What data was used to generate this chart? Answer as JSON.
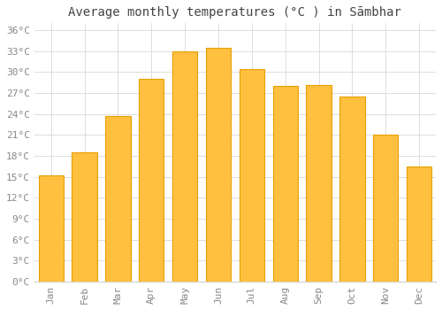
{
  "title": "Average monthly temperatures (°C ) in Sāmbhar",
  "months": [
    "Jan",
    "Feb",
    "Mar",
    "Apr",
    "May",
    "Jun",
    "Jul",
    "Aug",
    "Sep",
    "Oct",
    "Nov",
    "Dec"
  ],
  "values": [
    15.2,
    18.5,
    23.7,
    29.0,
    33.0,
    33.5,
    30.5,
    28.0,
    28.2,
    26.5,
    21.0,
    16.5
  ],
  "bar_color": "#FFC040",
  "bar_edge_color": "#E8A000",
  "ylim": [
    0,
    37
  ],
  "yticks": [
    0,
    3,
    6,
    9,
    12,
    15,
    18,
    21,
    24,
    27,
    30,
    33,
    36
  ],
  "ytick_labels": [
    "0°C",
    "3°C",
    "6°C",
    "9°C",
    "12°C",
    "15°C",
    "18°C",
    "21°C",
    "24°C",
    "27°C",
    "30°C",
    "33°C",
    "36°C"
  ],
  "grid_color": "#d8d8d8",
  "background_color": "#ffffff",
  "tick_font_color": "#888888",
  "title_color": "#444444",
  "title_fontsize": 10,
  "tick_fontsize": 8,
  "bar_width": 0.75
}
